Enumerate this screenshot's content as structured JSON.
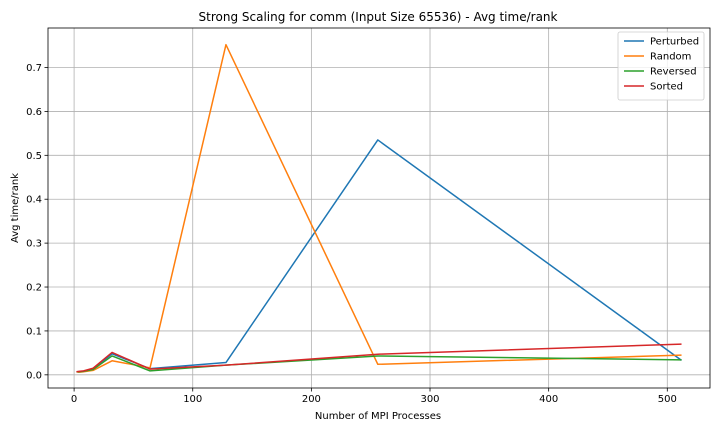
{
  "chart_data": {
    "type": "line",
    "title": "Strong Scaling for comm (Input Size 65536) - Avg time/rank",
    "xlabel": "Number of MPI Processes",
    "ylabel": "Avg time/rank",
    "xlim": [
      -22,
      536
    ],
    "ylim": [
      -0.03,
      0.79
    ],
    "xticks": [
      0,
      100,
      200,
      300,
      400,
      500
    ],
    "yticks": [
      0.0,
      0.1,
      0.2,
      0.3,
      0.4,
      0.5,
      0.6,
      0.7
    ],
    "grid": true,
    "legend_position": "top-right",
    "x": [
      2,
      4,
      8,
      16,
      32,
      64,
      128,
      256,
      512
    ],
    "series": [
      {
        "name": "Perturbed",
        "color": "#1f77b4",
        "values": [
          0.007,
          0.007,
          0.008,
          0.013,
          0.048,
          0.014,
          0.028,
          0.535,
          0.033
        ]
      },
      {
        "name": "Random",
        "color": "#ff7f0e",
        "values": [
          0.007,
          0.006,
          0.007,
          0.01,
          0.032,
          0.016,
          0.752,
          0.024,
          0.045
        ]
      },
      {
        "name": "Reversed",
        "color": "#2ca02c",
        "values": [
          0.007,
          0.007,
          0.008,
          0.012,
          0.043,
          0.009,
          0.022,
          0.043,
          0.034
        ]
      },
      {
        "name": "Sorted",
        "color": "#d62728",
        "values": [
          0.007,
          0.008,
          0.009,
          0.015,
          0.051,
          0.013,
          0.022,
          0.047,
          0.07
        ]
      }
    ]
  }
}
